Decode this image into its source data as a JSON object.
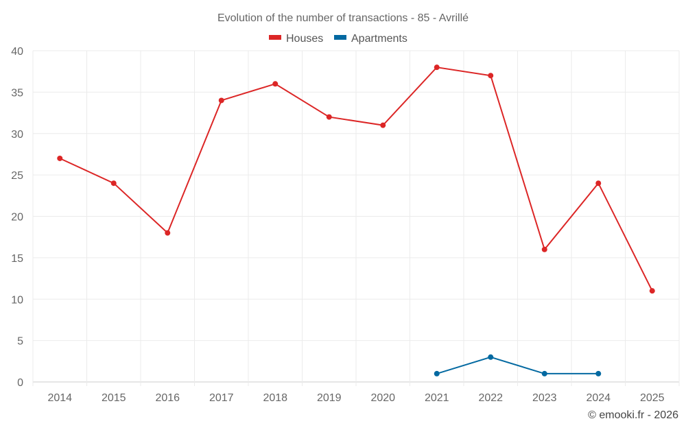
{
  "chart_data": {
    "type": "line",
    "title": "Evolution of the number of transactions - 85 - Avrillé",
    "categories": [
      "2014",
      "2015",
      "2016",
      "2017",
      "2018",
      "2019",
      "2020",
      "2021",
      "2022",
      "2023",
      "2024",
      "2025"
    ],
    "series": [
      {
        "name": "Houses",
        "color": "#dc2626",
        "values": [
          27,
          24,
          18,
          34,
          36,
          32,
          31,
          38,
          37,
          16,
          24,
          11
        ]
      },
      {
        "name": "Apartments",
        "color": "#0369a1",
        "values": [
          null,
          null,
          null,
          null,
          null,
          null,
          null,
          1,
          3,
          1,
          1,
          null
        ]
      }
    ],
    "ylim": [
      0,
      40
    ],
    "yticks": [
      0,
      5,
      10,
      15,
      20,
      25,
      30,
      35,
      40
    ],
    "grid": true,
    "legend": "top-center",
    "xlabel": "",
    "ylabel": ""
  },
  "credit": "© emooki.fr - 2026"
}
